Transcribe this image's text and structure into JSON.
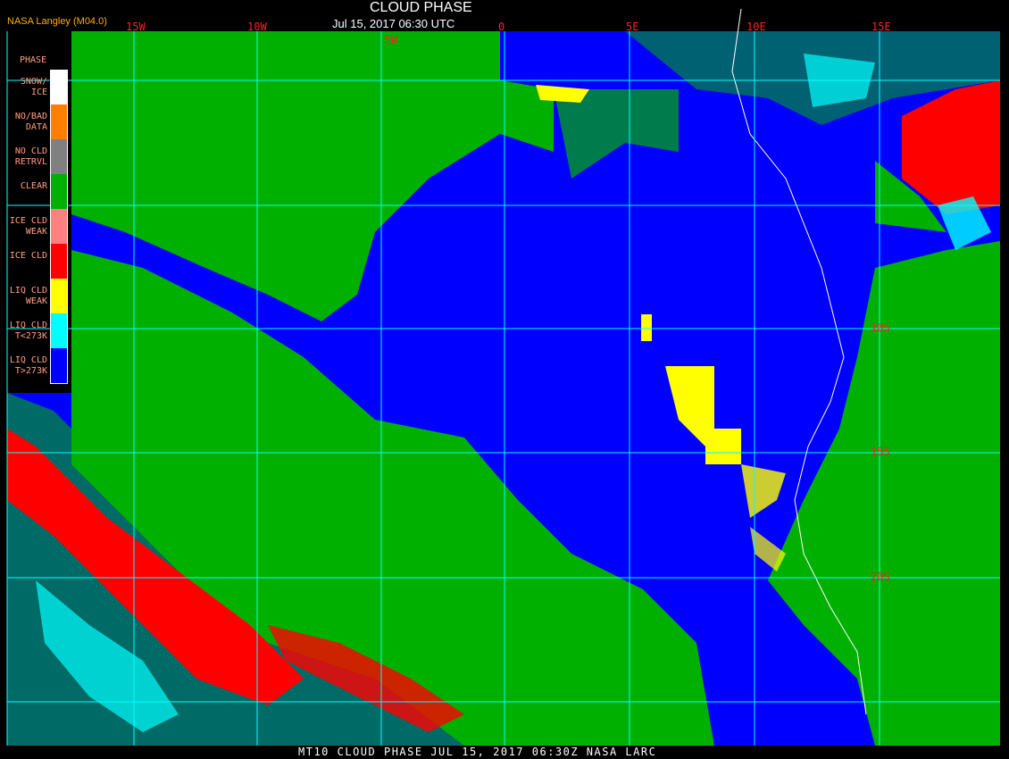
{
  "header": {
    "title": "CLOUD PHASE",
    "datetime": "Jul 15, 2017 06:30 UTC",
    "credit": "NASA Langley (M04.0)"
  },
  "lon_labels": [
    "15W",
    "10W",
    "5W",
    "0",
    "5E",
    "10E",
    "15E"
  ],
  "lat_labels": [
    "10S",
    "15S",
    "20S"
  ],
  "legend": {
    "title": "PHASE",
    "items": [
      {
        "label": "SNOW/ ICE",
        "color": "#ffffff"
      },
      {
        "label": "NO/BAD DATA",
        "color": "#ff8000"
      },
      {
        "label": "NO CLD RETRVL",
        "color": "#808080"
      },
      {
        "label": "CLEAR",
        "color": "#00b000"
      },
      {
        "label": "ICE CLD WEAK",
        "color": "#ff8080"
      },
      {
        "label": "ICE CLD",
        "color": "#ff0000"
      },
      {
        "label": "LIQ CLD WEAK",
        "color": "#ffff00"
      },
      {
        "label": "LIQ CLD T<273K",
        "color": "#00ffff"
      },
      {
        "label": "LIQ CLD T>273K",
        "color": "#0000ff"
      }
    ]
  },
  "footer": "MT10  CLOUD PHASE  JUL 15, 2017 06:30Z  NASA LARC",
  "colors": {
    "grid": "#00ffff",
    "label": "#ff2020",
    "coastline": "#ffffff"
  }
}
